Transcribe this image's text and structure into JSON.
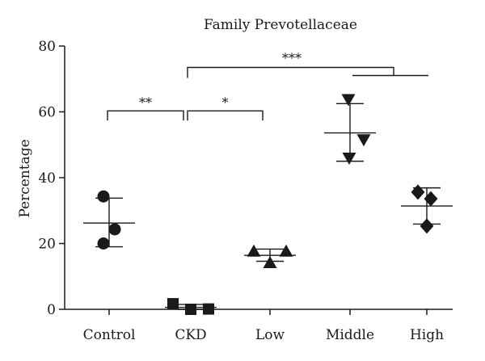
{
  "chart_data": {
    "type": "scatter",
    "title": "Family Prevotellaceae",
    "ylabel": "Percentage",
    "xlabel": "",
    "ylim": [
      0,
      80
    ],
    "yticks": [
      0,
      20,
      40,
      60,
      80
    ],
    "grid": false,
    "legend": "none",
    "categories": [
      "Control",
      "CKD",
      "Low",
      "Middle",
      "High"
    ],
    "groups": [
      {
        "category": "Control",
        "marker": "circle",
        "points": [
          34.3,
          20.0,
          24.3
        ],
        "mean": 26.2,
        "sd_low": 19.0,
        "sd_high": 33.8
      },
      {
        "category": "CKD",
        "marker": "square",
        "points": [
          1.7,
          0.0,
          0.1
        ],
        "mean": 0.6,
        "sd_low": 0.0,
        "sd_high": 1.5
      },
      {
        "category": "Low",
        "marker": "triangle-up",
        "points": [
          17.6,
          14.1,
          17.6
        ],
        "mean": 16.4,
        "sd_low": 14.6,
        "sd_high": 18.3
      },
      {
        "category": "Middle",
        "marker": "triangle-down",
        "points": [
          63.8,
          46.0,
          51.6
        ],
        "mean": 53.6,
        "sd_low": 45.0,
        "sd_high": 62.5
      },
      {
        "category": "High",
        "marker": "diamond",
        "points": [
          35.6,
          33.6,
          25.3
        ],
        "mean": 31.4,
        "sd_low": 25.9,
        "sd_high": 36.9
      }
    ],
    "significance": [
      {
        "from": "Control",
        "to": "CKD",
        "label": "**",
        "y": 60.3
      },
      {
        "from": "CKD",
        "to": "Low",
        "label": "*",
        "y": 60.3
      },
      {
        "from": "CKD",
        "to": "Middle|High",
        "label": "***",
        "y": 73.5
      }
    ]
  }
}
